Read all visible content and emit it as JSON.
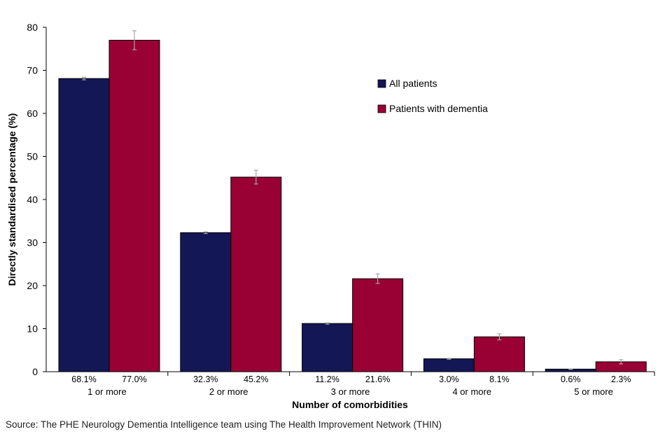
{
  "chart_data": {
    "type": "bar",
    "categories": [
      "1 or more",
      "2 or more",
      "3 or more",
      "4 or more",
      "5 or more"
    ],
    "series": [
      {
        "name": "All patients",
        "color": "#141755",
        "values": [
          68.1,
          32.3,
          11.2,
          3.0,
          0.6
        ],
        "labels": [
          "68.1%",
          "32.3%",
          "11.2%",
          "3.0%",
          "0.6%"
        ],
        "error": [
          0.3,
          0.2,
          0.15,
          0.1,
          0.05
        ]
      },
      {
        "name": "Patients with dementia",
        "color": "#990033",
        "values": [
          77.0,
          45.2,
          21.6,
          8.1,
          2.3
        ],
        "labels": [
          "77.0%",
          "45.2%",
          "21.6%",
          "8.1%",
          "2.3%"
        ],
        "error": [
          2.2,
          1.6,
          1.1,
          0.7,
          0.5
        ]
      }
    ],
    "xlabel": "Number of comorbidities",
    "ylabel": "Directly standardised percentage  (%)",
    "ylim": [
      0,
      80
    ],
    "yticks": [
      0,
      10,
      20,
      30,
      40,
      50,
      60,
      70,
      80
    ],
    "error_bar_color": "#a6a6a6",
    "legend_position": "top-right"
  },
  "source": "Source: The PHE Neurology Dementia Intelligence team using The Health Improvement Network (THIN)"
}
